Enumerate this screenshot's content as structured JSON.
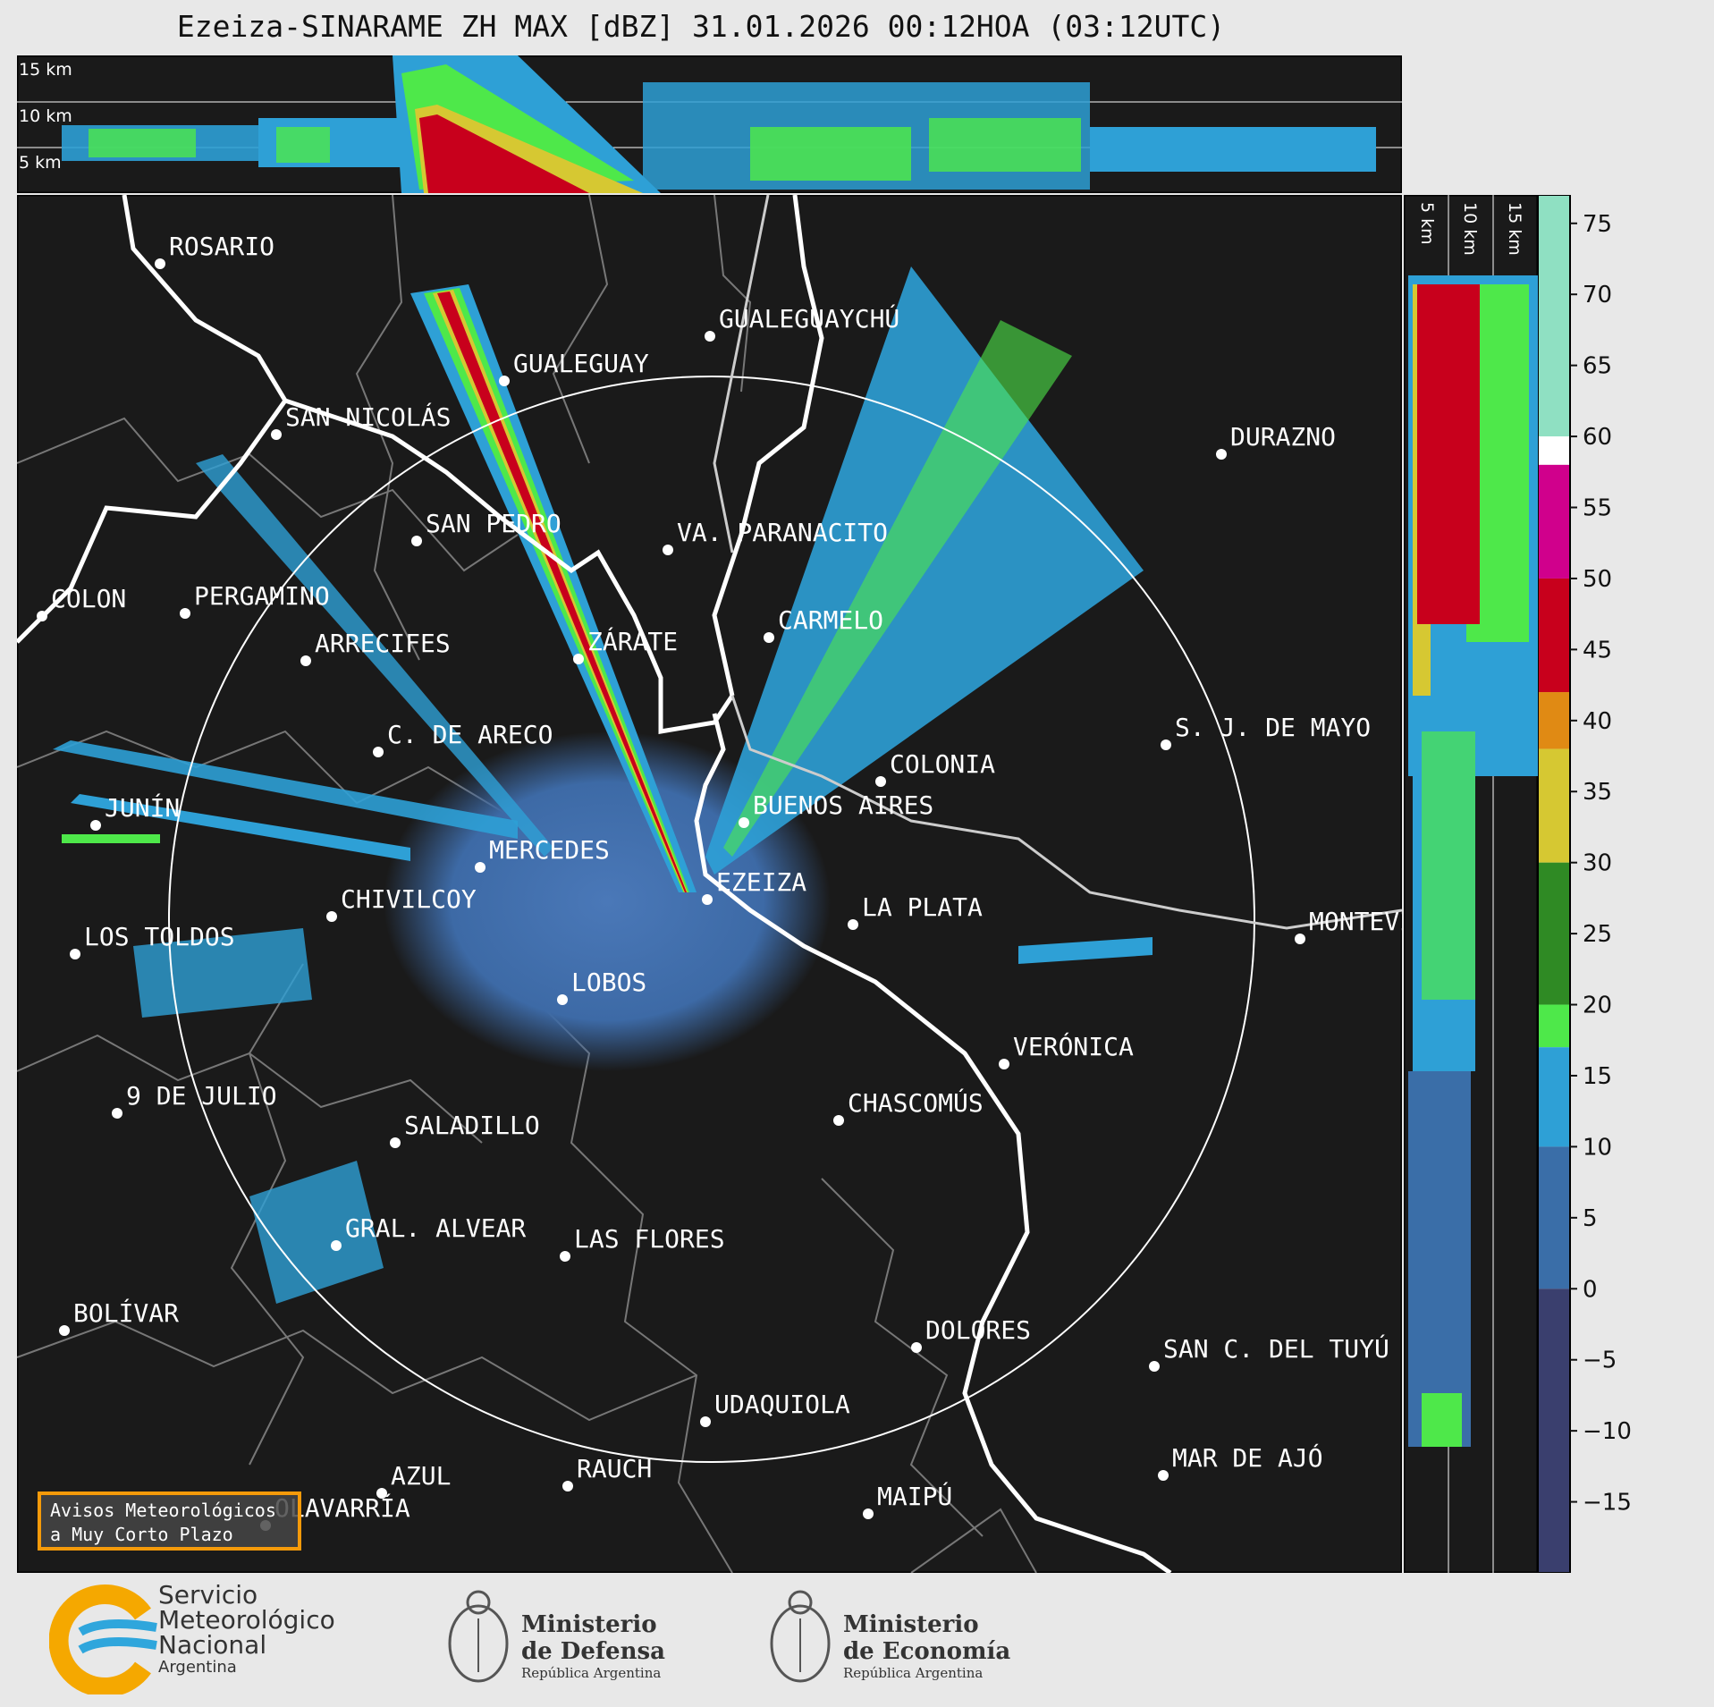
{
  "title": "Ezeiza-SINARAME ZH MAX [dBZ] 31.01.2026 00:12HOA (03:12UTC)",
  "radar": {
    "name": "EZEIZA",
    "color_map_colors": {
      "background": "#1a1a1a",
      "border": "#777777",
      "coast": "#ffffff",
      "range_ring": "#ffffff"
    }
  },
  "height_labels": {
    "h15": "15 km",
    "h10": "10 km",
    "h5": "5 km"
  },
  "cities": [
    {
      "name": "ROSARIO"
    },
    {
      "name": "GUALEGUAYCHÚ"
    },
    {
      "name": "GUALEGUAY"
    },
    {
      "name": "SAN NICOLÁS"
    },
    {
      "name": "DURAZNO"
    },
    {
      "name": "SAN PEDRO"
    },
    {
      "name": "VA. PARANACITO"
    },
    {
      "name": "COLON"
    },
    {
      "name": "PERGAMINO"
    },
    {
      "name": "CARMELO"
    },
    {
      "name": "ARRECIFES"
    },
    {
      "name": "ZÁRATE"
    },
    {
      "name": "S. J. DE MAYO"
    },
    {
      "name": "C. DE ARECO"
    },
    {
      "name": "COLONIA"
    },
    {
      "name": "JUNÍN"
    },
    {
      "name": "BUENOS AIRES"
    },
    {
      "name": "MERCEDES"
    },
    {
      "name": "MONTEVIDEO"
    },
    {
      "name": "EZEIZA"
    },
    {
      "name": "CHIVILCOY"
    },
    {
      "name": "LA PLATA"
    },
    {
      "name": "LOS TOLDOS"
    },
    {
      "name": "LOBOS"
    },
    {
      "name": "VERÓNICA"
    },
    {
      "name": "9 DE JULIO"
    },
    {
      "name": "CHASCOMÚS"
    },
    {
      "name": "SALADILLO"
    },
    {
      "name": "GRAL. ALVEAR"
    },
    {
      "name": "LAS FLORES"
    },
    {
      "name": "BOLÍVAR"
    },
    {
      "name": "DOLORES"
    },
    {
      "name": "SAN C. DEL TUYÚ"
    },
    {
      "name": "UDAQUIOLA"
    },
    {
      "name": "MAR DE AJÓ"
    },
    {
      "name": "AZUL"
    },
    {
      "name": "RAUCH"
    },
    {
      "name": "OLAVARRÍA"
    },
    {
      "name": "MAIPÚ"
    }
  ],
  "colorbar": {
    "unit": "dBZ",
    "ticks": [
      "75",
      "70",
      "65",
      "60",
      "55",
      "50",
      "45",
      "40",
      "35",
      "30",
      "25",
      "20",
      "15",
      "10",
      "5",
      "0",
      "−5",
      "−10",
      "−15"
    ],
    "range": [
      -20,
      77
    ],
    "stops": [
      {
        "from": 60,
        "to": 77,
        "color": "#8fe0c2"
      },
      {
        "from": 58,
        "to": 60,
        "color": "#ffffff"
      },
      {
        "from": 50,
        "to": 58,
        "color": "#d0008c"
      },
      {
        "from": 42,
        "to": 50,
        "color": "#c8001c"
      },
      {
        "from": 38,
        "to": 42,
        "color": "#e08a14"
      },
      {
        "from": 30,
        "to": 38,
        "color": "#d6c832"
      },
      {
        "from": 20,
        "to": 30,
        "color": "#2f8a24"
      },
      {
        "from": 17,
        "to": 20,
        "color": "#4ee84a"
      },
      {
        "from": 10,
        "to": 17,
        "color": "#2ea0d6"
      },
      {
        "from": 0,
        "to": 10,
        "color": "#3a6ea8"
      },
      {
        "from": -20,
        "to": 0,
        "color": "#3a3f6e"
      }
    ]
  },
  "warning": {
    "line1": "Avisos Meteorológicos",
    "line2": "a Muy Corto Plazo"
  },
  "logos": {
    "smn": {
      "line1": "Servicio",
      "line2": "Meteorológico",
      "line3": "Nacional",
      "line4": "Argentina"
    },
    "defensa": {
      "line1": "Ministerio",
      "line2": "de Defensa",
      "line3": "República Argentina"
    },
    "economia": {
      "line1": "Ministerio",
      "line2": "de Economía",
      "line3": "República Argentina"
    }
  }
}
